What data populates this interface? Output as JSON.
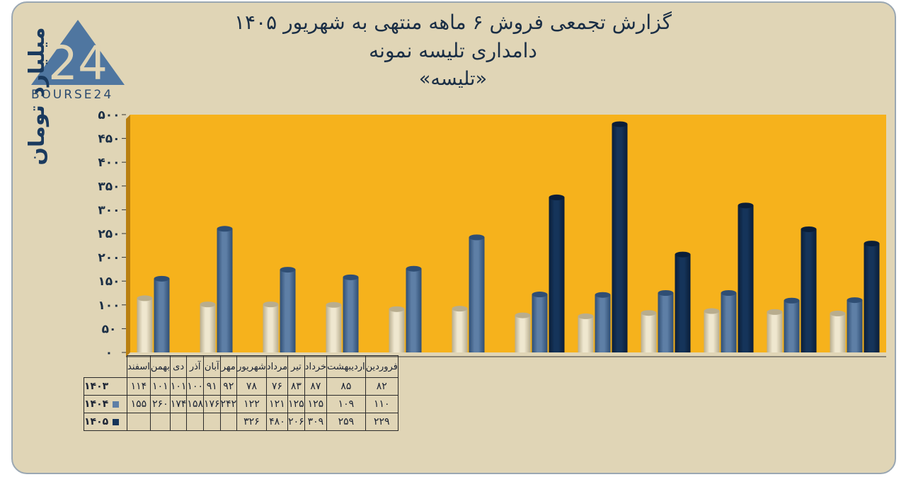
{
  "title": {
    "line1": "گزارش تجمعی فروش ۶ ماهه منتهی به شهریور ۱۴۰۵",
    "line2": "دامداری تلیسه نمونه",
    "line3": "«تلیسه»"
  },
  "logo": {
    "mark": "24",
    "text": "BOURSE24"
  },
  "colors": {
    "s1403": "#efe7cf",
    "s1404": "#5e7fa6",
    "s1405": "#15345a",
    "plot_bg": "#f6b21c"
  },
  "chart_data": {
    "type": "bar",
    "ylabel": "میلیارد تومان",
    "ylim": [
      0,
      500
    ],
    "yticks": [
      "۰",
      "۵۰",
      "۱۰۰",
      "۱۵۰",
      "۲۰۰",
      "۲۵۰",
      "۳۰۰",
      "۳۵۰",
      "۴۰۰",
      "۴۵۰",
      "۵۰۰"
    ],
    "categories": [
      "فروردین",
      "اردیبهشت",
      "خرداد",
      "تیر",
      "مرداد",
      "شهریور",
      "مهر",
      "آبان",
      "آذر",
      "دی",
      "بهمن",
      "اسفند"
    ],
    "series": [
      {
        "name": "۱۴۰۳",
        "values": [
          82,
          85,
          87,
          83,
          76,
          78,
          92,
          91,
          100,
          101,
          101,
          114
        ],
        "labels": [
          "۸۲",
          "۸۵",
          "۸۷",
          "۸۳",
          "۷۶",
          "۷۸",
          "۹۲",
          "۹۱",
          "۱۰۰",
          "۱۰۱",
          "۱۰۱",
          "۱۱۴"
        ]
      },
      {
        "name": "۱۴۰۴",
        "values": [
          110,
          109,
          125,
          125,
          121,
          122,
          242,
          176,
          158,
          174,
          260,
          155
        ],
        "labels": [
          "۱۱۰",
          "۱۰۹",
          "۱۲۵",
          "۱۲۵",
          "۱۲۱",
          "۱۲۲",
          "۲۴۲",
          "۱۷۶",
          "۱۵۸",
          "۱۷۴",
          "۲۶۰",
          "۱۵۵"
        ]
      },
      {
        "name": "۱۴۰۵",
        "values": [
          229,
          259,
          309,
          206,
          480,
          326,
          null,
          null,
          null,
          null,
          null,
          null
        ],
        "labels": [
          "۲۲۹",
          "۲۵۹",
          "۳۰۹",
          "۲۰۶",
          "۴۸۰",
          "۳۲۶",
          "",
          "",
          "",
          "",
          "",
          ""
        ]
      }
    ],
    "grid": false,
    "legend": "table"
  }
}
